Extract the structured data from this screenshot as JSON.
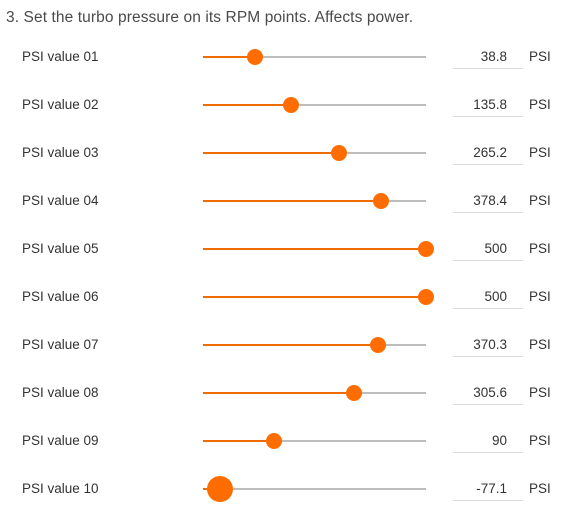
{
  "heading": "3. Set the turbo pressure on its RPM points. Affects power.",
  "slider_range": {
    "min": -100,
    "max": 500
  },
  "accent_color": "#ff6d00",
  "track_color": "#bdbdbd",
  "rows": [
    {
      "label": "PSI value 01",
      "value": "38.8",
      "unit": "PSI"
    },
    {
      "label": "PSI value 02",
      "value": "135.8",
      "unit": "PSI"
    },
    {
      "label": "PSI value 03",
      "value": "265.2",
      "unit": "PSI"
    },
    {
      "label": "PSI value 04",
      "value": "378.4",
      "unit": "PSI"
    },
    {
      "label": "PSI value 05",
      "value": "500",
      "unit": "PSI"
    },
    {
      "label": "PSI value 06",
      "value": "500",
      "unit": "PSI"
    },
    {
      "label": "PSI value 07",
      "value": "370.3",
      "unit": "PSI"
    },
    {
      "label": "PSI value 08",
      "value": "305.6",
      "unit": "PSI"
    },
    {
      "label": "PSI value 09",
      "value": "90",
      "unit": "PSI"
    },
    {
      "label": "PSI value 10",
      "value": "-77.1",
      "unit": "PSI"
    }
  ]
}
